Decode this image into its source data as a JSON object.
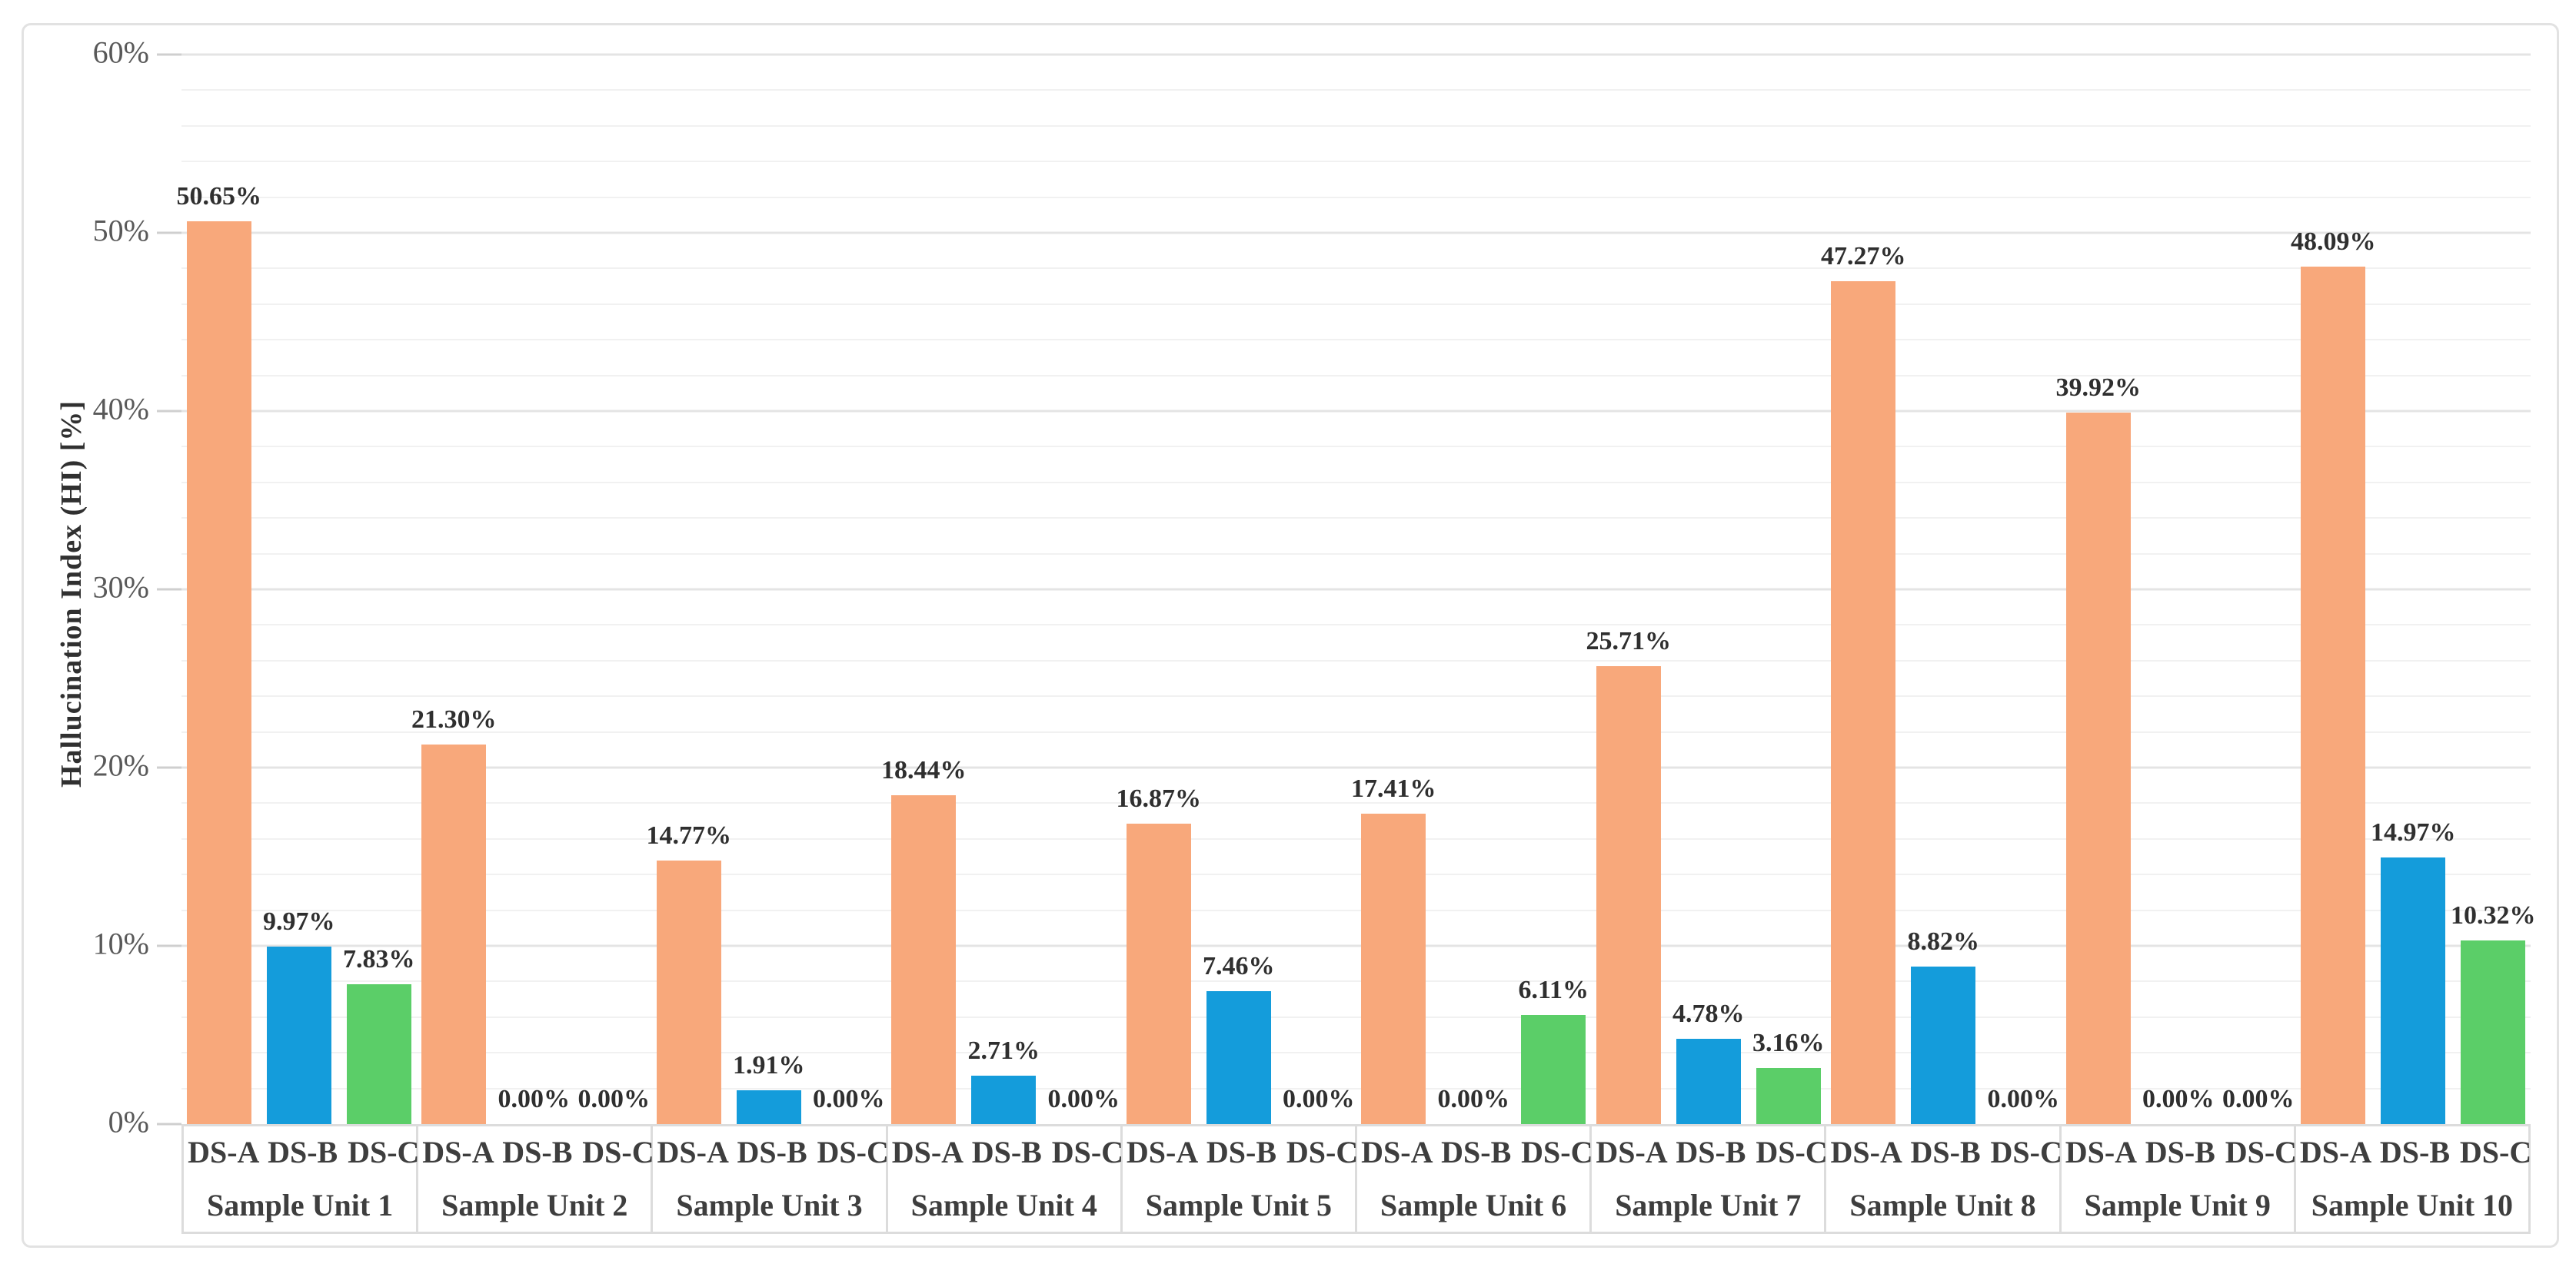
{
  "chart_data": {
    "type": "bar",
    "title": "",
    "xlabel": "",
    "ylabel": "Hallucination Index (HI) [%]",
    "ylim": [
      0,
      60
    ],
    "grid": true,
    "legend": "none",
    "gridline_minor_step": 2,
    "gridline_major_step": 10,
    "yticks": [
      {
        "value": 0,
        "label": "0%"
      },
      {
        "value": 10,
        "label": "10%"
      },
      {
        "value": 20,
        "label": "20%"
      },
      {
        "value": 30,
        "label": "30%"
      },
      {
        "value": 40,
        "label": "40%"
      },
      {
        "value": 50,
        "label": "50%"
      },
      {
        "value": 60,
        "label": "60%"
      }
    ],
    "categories": [
      "Sample Unit 1",
      "Sample Unit 2",
      "Sample Unit 3",
      "Sample Unit 4",
      "Sample Unit 5",
      "Sample Unit 6",
      "Sample Unit 7",
      "Sample Unit 8",
      "Sample Unit 9",
      "Sample Unit 10"
    ],
    "series": [
      {
        "name": "DS-A",
        "color": "#F8A87B",
        "values": [
          50.65,
          21.3,
          14.77,
          18.44,
          16.87,
          17.41,
          25.71,
          47.27,
          39.92,
          48.09
        ],
        "labels": [
          "50.65%",
          "21.30%",
          "14.77%",
          "18.44%",
          "16.87%",
          "17.41%",
          "25.71%",
          "47.27%",
          "39.92%",
          "48.09%"
        ]
      },
      {
        "name": "DS-B",
        "color": "#149CDB",
        "values": [
          9.97,
          0.0,
          1.91,
          2.71,
          7.46,
          0.0,
          4.78,
          8.82,
          0.0,
          14.97
        ],
        "labels": [
          "9.97%",
          "0.00%",
          "1.91%",
          "2.71%",
          "7.46%",
          "0.00%",
          "4.78%",
          "8.82%",
          "0.00%",
          "14.97%"
        ]
      },
      {
        "name": "DS-C",
        "color": "#5BCE68",
        "values": [
          7.83,
          0.0,
          0.0,
          0.0,
          0.0,
          6.11,
          3.16,
          0.0,
          0.0,
          10.32
        ],
        "labels": [
          "7.83%",
          "0.00%",
          "0.00%",
          "0.00%",
          "0.00%",
          "6.11%",
          "3.16%",
          "0.00%",
          "0.00%",
          "10.32%"
        ]
      }
    ],
    "value_label_format": "0.00%",
    "palette": {
      "background": "#FFFFFF",
      "figure_border": "#E2E2E2",
      "gridline_minor": "#F1F1F1",
      "gridline_major": "#E4E4E4",
      "axis_table_border": "#DCDCDC",
      "tick_text": "#595959",
      "label_text": "#2F2F2F"
    }
  }
}
